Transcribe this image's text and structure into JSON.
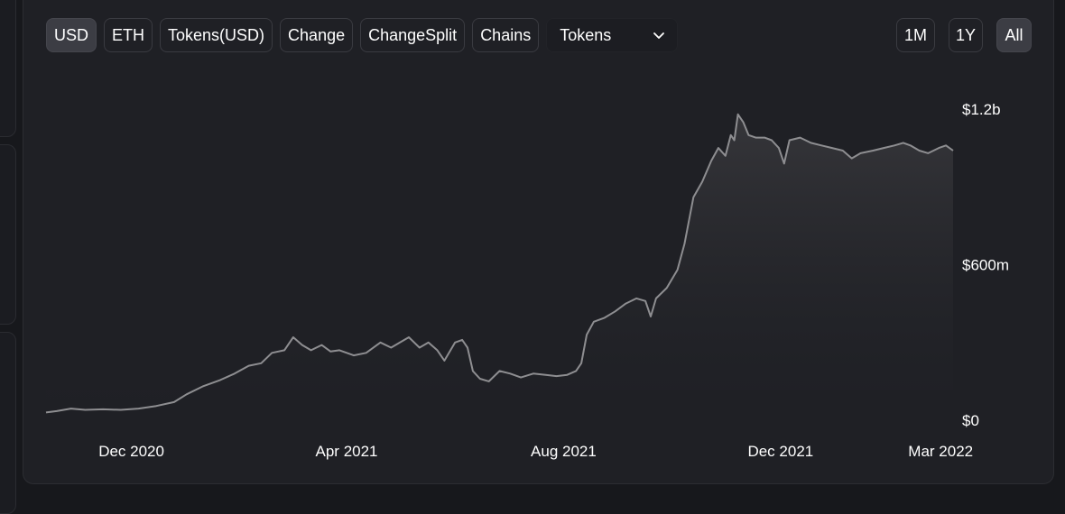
{
  "toolbar": {
    "buttons": [
      {
        "label": "USD",
        "active": true
      },
      {
        "label": "ETH",
        "active": false
      },
      {
        "label": "Tokens(USD)",
        "active": false
      },
      {
        "label": "Change",
        "active": false
      },
      {
        "label": "ChangeSplit",
        "active": false
      },
      {
        "label": "Chains",
        "active": false
      }
    ],
    "dropdown": {
      "selected": "Tokens",
      "icon": "chevron-down-icon"
    }
  },
  "ranges": [
    {
      "label": "1M",
      "active": false
    },
    {
      "label": "1Y",
      "active": false
    },
    {
      "label": "All",
      "active": true
    }
  ],
  "colors": {
    "background": "#1f2025",
    "line": "#8e8e91",
    "area_top": "#3a3a3e",
    "active_button": "#3c3d44"
  },
  "chart_data": {
    "type": "area",
    "title": "",
    "xlabel": "",
    "ylabel": "",
    "y_tick_labels": [
      "$0",
      "$600m",
      "$1.2b"
    ],
    "y_ticks": [
      0,
      600,
      1200
    ],
    "ylim": [
      0,
      1230
    ],
    "y_unit": "millions USD",
    "y_axis_position": "right",
    "x_tick_labels": [
      "Dec 2020",
      "Apr 2021",
      "Aug 2021",
      "Dec 2021",
      "Mar 2022"
    ],
    "x_ticks": [
      "2020-12-01",
      "2021-04-01",
      "2021-08-01",
      "2021-12-01",
      "2022-03-01"
    ],
    "xlim": [
      "2020-10-14",
      "2022-03-08"
    ],
    "grid": false,
    "legend": "none",
    "series": [
      {
        "points": [
          [
            "2020-10-14",
            30
          ],
          [
            "2020-10-20",
            35
          ],
          [
            "2020-10-28",
            45
          ],
          [
            "2020-11-05",
            40
          ],
          [
            "2020-11-15",
            42
          ],
          [
            "2020-11-25",
            40
          ],
          [
            "2020-12-05",
            45
          ],
          [
            "2020-12-15",
            55
          ],
          [
            "2020-12-25",
            70
          ],
          [
            "2021-01-01",
            100
          ],
          [
            "2021-01-10",
            130
          ],
          [
            "2021-01-20",
            155
          ],
          [
            "2021-01-28",
            180
          ],
          [
            "2021-02-05",
            210
          ],
          [
            "2021-02-12",
            220
          ],
          [
            "2021-02-18",
            260
          ],
          [
            "2021-02-25",
            270
          ],
          [
            "2021-03-02",
            320
          ],
          [
            "2021-03-07",
            290
          ],
          [
            "2021-03-12",
            270
          ],
          [
            "2021-03-18",
            290
          ],
          [
            "2021-03-23",
            265
          ],
          [
            "2021-03-28",
            270
          ],
          [
            "2021-04-05",
            250
          ],
          [
            "2021-04-12",
            260
          ],
          [
            "2021-04-20",
            300
          ],
          [
            "2021-04-26",
            280
          ],
          [
            "2021-05-01",
            300
          ],
          [
            "2021-05-06",
            320
          ],
          [
            "2021-05-12",
            280
          ],
          [
            "2021-05-17",
            300
          ],
          [
            "2021-05-22",
            270
          ],
          [
            "2021-05-26",
            230
          ],
          [
            "2021-06-01",
            300
          ],
          [
            "2021-06-05",
            310
          ],
          [
            "2021-06-08",
            280
          ],
          [
            "2021-06-11",
            190
          ],
          [
            "2021-06-15",
            160
          ],
          [
            "2021-06-20",
            150
          ],
          [
            "2021-06-26",
            190
          ],
          [
            "2021-07-02",
            180
          ],
          [
            "2021-07-08",
            165
          ],
          [
            "2021-07-15",
            180
          ],
          [
            "2021-07-22",
            175
          ],
          [
            "2021-07-28",
            170
          ],
          [
            "2021-08-03",
            175
          ],
          [
            "2021-08-08",
            190
          ],
          [
            "2021-08-11",
            220
          ],
          [
            "2021-08-14",
            330
          ],
          [
            "2021-08-18",
            380
          ],
          [
            "2021-08-24",
            395
          ],
          [
            "2021-08-30",
            420
          ],
          [
            "2021-09-05",
            450
          ],
          [
            "2021-09-11",
            470
          ],
          [
            "2021-09-16",
            460
          ],
          [
            "2021-09-19",
            400
          ],
          [
            "2021-09-22",
            470
          ],
          [
            "2021-09-28",
            510
          ],
          [
            "2021-10-04",
            580
          ],
          [
            "2021-10-08",
            680
          ],
          [
            "2021-10-13",
            860
          ],
          [
            "2021-10-18",
            920
          ],
          [
            "2021-10-23",
            1000
          ],
          [
            "2021-10-27",
            1050
          ],
          [
            "2021-10-31",
            1020
          ],
          [
            "2021-11-03",
            1100
          ],
          [
            "2021-11-05",
            1080
          ],
          [
            "2021-11-07",
            1180
          ],
          [
            "2021-11-10",
            1150
          ],
          [
            "2021-11-13",
            1100
          ],
          [
            "2021-11-17",
            1090
          ],
          [
            "2021-11-22",
            1090
          ],
          [
            "2021-11-26",
            1080
          ],
          [
            "2021-11-30",
            1050
          ],
          [
            "2021-12-03",
            990
          ],
          [
            "2021-12-06",
            1080
          ],
          [
            "2021-12-12",
            1090
          ],
          [
            "2021-12-18",
            1070
          ],
          [
            "2021-12-24",
            1060
          ],
          [
            "2021-12-30",
            1050
          ],
          [
            "2022-01-05",
            1040
          ],
          [
            "2022-01-10",
            1010
          ],
          [
            "2022-01-15",
            1030
          ],
          [
            "2022-01-22",
            1040
          ],
          [
            "2022-01-28",
            1050
          ],
          [
            "2022-02-03",
            1060
          ],
          [
            "2022-02-08",
            1070
          ],
          [
            "2022-02-12",
            1060
          ],
          [
            "2022-02-17",
            1040
          ],
          [
            "2022-02-22",
            1030
          ],
          [
            "2022-02-28",
            1050
          ],
          [
            "2022-03-04",
            1060
          ],
          [
            "2022-03-08",
            1040
          ]
        ]
      }
    ]
  }
}
